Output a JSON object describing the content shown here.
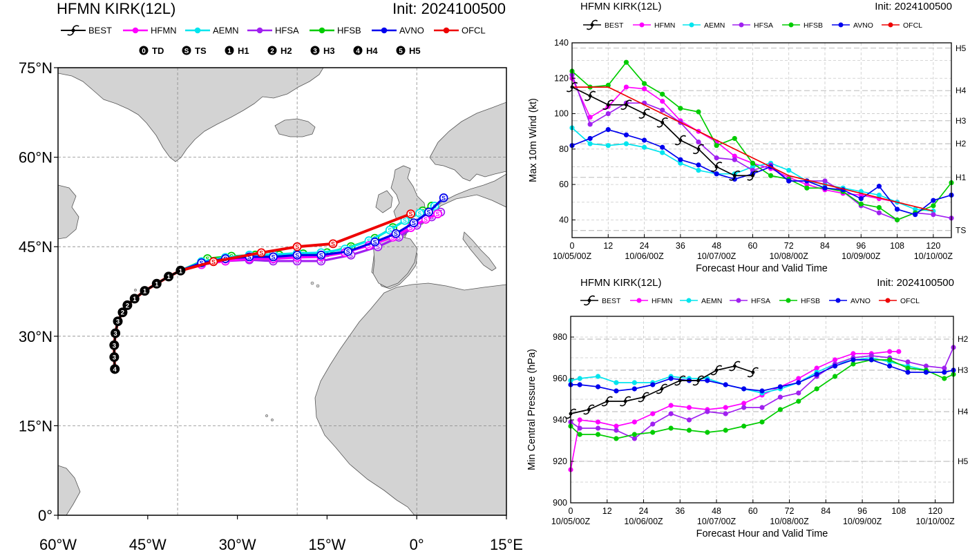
{
  "map_panel": {
    "title": "HFMN KIRK(12L)",
    "init": "Init: 2024100500",
    "legend": [
      {
        "name": "BEST",
        "color": "#000000"
      },
      {
        "name": "HFMN",
        "color": "#ff00ff"
      },
      {
        "name": "AEMN",
        "color": "#00e5ee"
      },
      {
        "name": "HFSA",
        "color": "#a020f0"
      },
      {
        "name": "HFSB",
        "color": "#00cc00"
      },
      {
        "name": "AVNO",
        "color": "#0000ee"
      },
      {
        "name": "OFCL",
        "color": "#ee0000"
      }
    ],
    "intensity_key": [
      {
        "symbol": "0",
        "label": "TD"
      },
      {
        "symbol": "S",
        "label": "TS"
      },
      {
        "symbol": "1",
        "label": "H1"
      },
      {
        "symbol": "2",
        "label": "H2"
      },
      {
        "symbol": "3",
        "label": "H3"
      },
      {
        "symbol": "4",
        "label": "H4"
      },
      {
        "symbol": "5",
        "label": "H5"
      }
    ],
    "lat_labels": [
      "75°N",
      "60°N",
      "45°N",
      "30°N",
      "15°N",
      "0°"
    ],
    "lon_labels": [
      "60°W",
      "45°W",
      "30°W",
      "15°W",
      "0°",
      "15°E"
    ],
    "colors": {
      "land": "#d3d3d3",
      "ocean": "#ffffff",
      "coast": "#555555",
      "grid": "#888888"
    }
  },
  "chart_data": [
    {
      "type": "line",
      "title": "HFMN KIRK(12L)",
      "init": "Init: 2024100500",
      "xlabel": "Forecast Hour and Valid Time",
      "ylabel": "Max 10m Wind (kt)",
      "xlim": [
        0,
        126
      ],
      "ylim": [
        30,
        140
      ],
      "xticks": [
        0,
        12,
        24,
        36,
        48,
        60,
        72,
        84,
        96,
        108,
        120
      ],
      "yticks": [
        40,
        60,
        80,
        100,
        120,
        140
      ],
      "date_labels": [
        {
          "hour": 0,
          "label": "10/05/00Z"
        },
        {
          "hour": 24,
          "label": "10/06/00Z"
        },
        {
          "hour": 48,
          "label": "10/07/00Z"
        },
        {
          "hour": 72,
          "label": "10/08/00Z"
        },
        {
          "hour": 96,
          "label": "10/09/00Z"
        },
        {
          "hour": 120,
          "label": "10/10/00Z"
        }
      ],
      "category_lines": [
        {
          "label": "H5",
          "value": 137
        },
        {
          "label": "H4",
          "value": 113
        },
        {
          "label": "H3",
          "value": 96
        },
        {
          "label": "H2",
          "value": 83
        },
        {
          "label": "H1",
          "value": 64
        },
        {
          "label": "TS",
          "value": 34
        }
      ],
      "series": [
        {
          "name": "HFMN",
          "color": "#ff00ff",
          "x": [
            0,
            6,
            12,
            18,
            24,
            30,
            36,
            42,
            48,
            54,
            60,
            66,
            72,
            78,
            84,
            90,
            96,
            102,
            108
          ],
          "values": [
            120,
            98,
            104,
            115,
            114,
            107,
            96,
            90,
            84,
            76,
            72,
            69,
            64,
            60,
            57,
            55,
            54,
            52,
            50
          ]
        },
        {
          "name": "AEMN",
          "color": "#00e5ee",
          "x": [
            0,
            6,
            12,
            18,
            24,
            30,
            36,
            42,
            48,
            54,
            60,
            66,
            72,
            78,
            84,
            90,
            96,
            102,
            108,
            114,
            120
          ],
          "values": [
            92,
            83,
            82,
            83,
            81,
            78,
            72,
            68,
            66,
            66,
            70,
            72,
            68,
            62,
            60,
            58,
            56,
            54,
            50,
            46,
            45
          ]
        },
        {
          "name": "HFSA",
          "color": "#a020f0",
          "x": [
            0,
            6,
            12,
            18,
            24,
            30,
            36,
            42,
            48,
            54,
            60,
            66,
            72,
            78,
            84,
            90,
            96,
            102,
            108,
            114,
            120,
            126
          ],
          "values": [
            122,
            94,
            100,
            106,
            106,
            102,
            95,
            84,
            75,
            74,
            68,
            71,
            62,
            62,
            62,
            56,
            48,
            44,
            40,
            44,
            43,
            41
          ]
        },
        {
          "name": "HFSB",
          "color": "#00cc00",
          "x": [
            0,
            6,
            12,
            18,
            24,
            30,
            36,
            42,
            48,
            54,
            60,
            66,
            72,
            78,
            84,
            90,
            96,
            102,
            108,
            114,
            120,
            126
          ],
          "values": [
            124,
            115,
            116,
            129,
            117,
            111,
            103,
            101,
            82,
            86,
            72,
            65,
            63,
            58,
            58,
            56,
            49,
            47,
            40,
            44,
            48,
            61
          ]
        },
        {
          "name": "AVNO",
          "color": "#0000ee",
          "x": [
            0,
            6,
            12,
            18,
            24,
            30,
            36,
            42,
            48,
            54,
            60,
            66,
            72,
            78,
            84,
            90,
            96,
            102,
            108,
            114,
            120,
            126
          ],
          "values": [
            82,
            86,
            91,
            88,
            85,
            81,
            74,
            71,
            66,
            63,
            66,
            70,
            62,
            62,
            58,
            57,
            52,
            59,
            46,
            43,
            51,
            54
          ]
        },
        {
          "name": "OFCL",
          "color": "#ee0000",
          "x": [
            0,
            12,
            24,
            36,
            48,
            60,
            72,
            96,
            120
          ],
          "values": [
            115,
            115,
            105,
            95,
            85,
            75,
            65,
            55,
            45
          ]
        },
        {
          "name": "BEST",
          "color": "#000000",
          "x": [
            0,
            6,
            12,
            18,
            24,
            30,
            36,
            42,
            48,
            54,
            60
          ],
          "values": [
            115,
            110,
            105,
            105,
            100,
            95,
            85,
            80,
            70,
            65,
            65
          ]
        }
      ]
    },
    {
      "type": "line",
      "title": "HFMN KIRK(12L)",
      "init": "Init: 2024100500",
      "xlabel": "Forecast Hour and Valid Time",
      "ylabel": "Min Central Pressure (hPa)",
      "xlim": [
        0,
        126
      ],
      "ylim": [
        900,
        990
      ],
      "xticks": [
        0,
        12,
        24,
        36,
        48,
        60,
        72,
        84,
        96,
        108,
        120
      ],
      "yticks": [
        900,
        920,
        940,
        960,
        980
      ],
      "date_labels": [
        {
          "hour": 0,
          "label": "10/05/00Z"
        },
        {
          "hour": 24,
          "label": "10/06/00Z"
        },
        {
          "hour": 48,
          "label": "10/07/00Z"
        },
        {
          "hour": 72,
          "label": "10/08/00Z"
        },
        {
          "hour": 96,
          "label": "10/09/00Z"
        },
        {
          "hour": 120,
          "label": "10/10/00Z"
        }
      ],
      "category_lines": [
        {
          "label": "H2",
          "value": 979
        },
        {
          "label": "H3",
          "value": 964
        },
        {
          "label": "H4",
          "value": 944
        },
        {
          "label": "H5",
          "value": 920
        }
      ],
      "series": [
        {
          "name": "HFMN",
          "color": "#ff00ff",
          "x": [
            0,
            3,
            9,
            15,
            21,
            27,
            33,
            39,
            45,
            51,
            57,
            63,
            69,
            75,
            81,
            87,
            93,
            99,
            105,
            108
          ],
          "values": [
            916,
            940,
            939,
            937,
            939,
            943,
            947,
            946,
            945,
            946,
            948,
            952,
            956,
            960,
            965,
            969,
            972,
            972,
            973,
            973
          ]
        },
        {
          "name": "AEMN",
          "color": "#00e5ee",
          "x": [
            0,
            3,
            9,
            15,
            21,
            27,
            33,
            39,
            45,
            51,
            57,
            63,
            69,
            75,
            81,
            87,
            93,
            99,
            105,
            111,
            117
          ],
          "values": [
            959,
            960,
            961,
            958,
            958,
            958,
            961,
            960,
            960,
            957,
            955,
            953,
            955,
            958,
            963,
            967,
            969,
            970,
            968,
            966,
            964
          ]
        },
        {
          "name": "HFSA",
          "color": "#a020f0",
          "x": [
            0,
            3,
            9,
            15,
            21,
            27,
            33,
            39,
            45,
            51,
            57,
            63,
            69,
            75,
            81,
            87,
            93,
            99,
            105,
            111,
            117,
            123,
            126
          ],
          "values": [
            939,
            936,
            936,
            935,
            931,
            938,
            943,
            940,
            944,
            943,
            946,
            946,
            951,
            953,
            961,
            967,
            970,
            971,
            970,
            968,
            966,
            965,
            975
          ]
        },
        {
          "name": "HFSB",
          "color": "#00cc00",
          "x": [
            0,
            3,
            9,
            15,
            21,
            27,
            33,
            39,
            45,
            51,
            57,
            63,
            69,
            75,
            81,
            87,
            93,
            99,
            105,
            111,
            117,
            123,
            126
          ],
          "values": [
            937,
            933,
            933,
            931,
            933,
            934,
            936,
            935,
            934,
            935,
            937,
            939,
            945,
            949,
            955,
            961,
            967,
            969,
            969,
            965,
            964,
            960,
            962
          ]
        },
        {
          "name": "AVNO",
          "color": "#0000ee",
          "x": [
            0,
            3,
            9,
            15,
            21,
            27,
            33,
            39,
            45,
            51,
            57,
            63,
            69,
            75,
            81,
            87,
            93,
            99,
            105,
            111,
            117,
            123,
            126
          ],
          "values": [
            957,
            957,
            956,
            954,
            955,
            957,
            960,
            959,
            959,
            957,
            955,
            954,
            956,
            958,
            962,
            966,
            969,
            969,
            966,
            963,
            963,
            963,
            964
          ]
        },
        {
          "name": "BEST",
          "color": "#000000",
          "x": [
            0,
            6,
            12,
            18,
            24,
            30,
            36,
            42,
            48,
            54,
            60
          ],
          "values": [
            943,
            945,
            949,
            949,
            951,
            955,
            959,
            959,
            964,
            966,
            963
          ]
        }
      ]
    }
  ]
}
